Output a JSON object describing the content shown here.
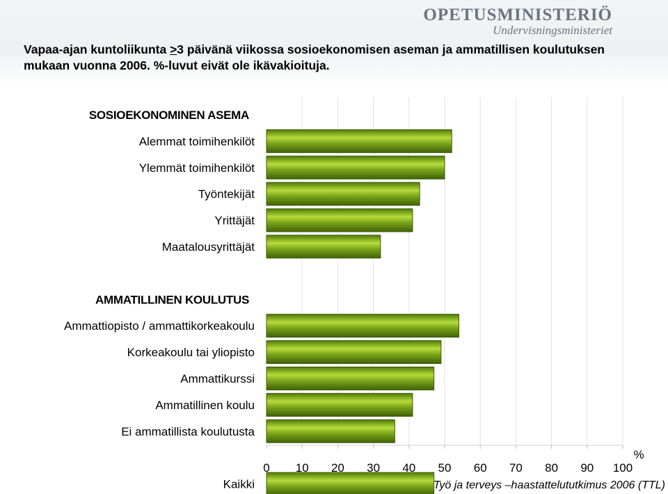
{
  "header": {
    "brand_name": "Opetusministeriö",
    "brand_subtitle": "Undervisningsministeriet",
    "title_part1": "Vapaa-ajan kuntoliikunta ",
    "title_underlined": ">",
    "title_part2": "3 päivänä viikossa sosioekonomisen aseman ja ammatillisen koulutuksen mukaan vuonna 2006. %-luvut eivät ole ikävakioituja."
  },
  "chart_data": {
    "type": "bar",
    "orientation": "horizontal",
    "categories": [
      "SOSIOEKONOMINEN ASEMA",
      "Alemmat toimihenkilöt",
      "Ylemmät toimihenkilöt",
      "Työntekijät",
      "Yrittäjät",
      "Maatalousyrittäjät",
      "",
      "AMMATILLINEN KOULUTUS",
      "Ammattiopisto / ammattikorkeakoulu",
      "Korkeakoulu tai yliopisto",
      "Ammattikurssi",
      "Ammatillinen koulu",
      "Ei ammatillista koulutusta",
      "",
      "Kaikki"
    ],
    "header_categories": [
      "SOSIOEKONOMINEN ASEMA",
      "AMMATILLINEN KOULUTUS"
    ],
    "values": [
      null,
      52,
      50,
      43,
      41,
      32,
      null,
      null,
      54,
      49,
      47,
      41,
      36,
      null,
      47
    ],
    "xlim": [
      0,
      100
    ],
    "xticks": [
      0,
      10,
      20,
      30,
      40,
      50,
      60,
      70,
      80,
      90,
      100
    ],
    "xlabel": "%",
    "grid": true,
    "bar_color": "#7aa51a",
    "bar_edge_color": "#3e5a08",
    "source": "Työ ja terveys –haastattelututkimus 2006 (TTL)"
  }
}
